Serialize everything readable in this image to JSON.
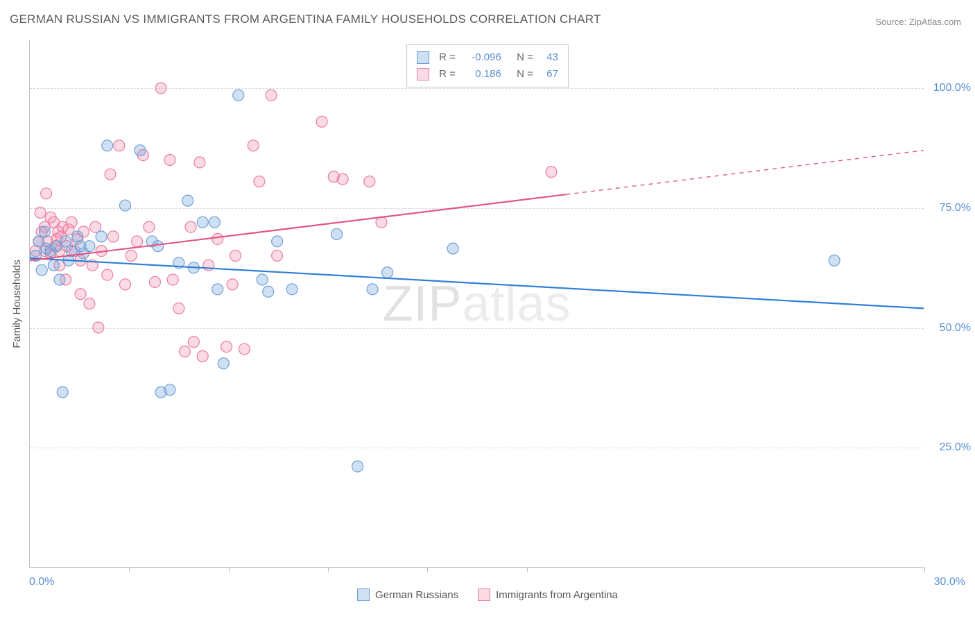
{
  "title": "GERMAN RUSSIAN VS IMMIGRANTS FROM ARGENTINA FAMILY HOUSEHOLDS CORRELATION CHART",
  "source": "Source: ZipAtlas.com",
  "watermark_bold": "ZIP",
  "watermark_rest": "atlas",
  "y_axis_title": "Family Households",
  "chart": {
    "type": "scatter",
    "xlim": [
      0,
      30
    ],
    "ylim": [
      0,
      110
    ],
    "x_ticks": [
      0,
      3.33,
      6.67,
      10,
      13.33,
      16.67,
      30
    ],
    "y_gridlines": [
      25,
      50,
      75,
      100
    ],
    "y_tick_labels": {
      "25": "25.0%",
      "50": "50.0%",
      "75": "75.0%",
      "100": "100.0%"
    },
    "x_min_label": "0.0%",
    "x_max_label": "30.0%",
    "background_color": "#ffffff",
    "grid_color": "#d8d8d8",
    "axis_color": "#c0c0c0",
    "tick_label_color": "#5a8fd6",
    "marker_radius": 8,
    "marker_stroke_width": 1.2,
    "line_width": 2.2,
    "series": [
      {
        "id": "blue",
        "name": "German Russians",
        "fill": "rgba(120,165,220,0.35)",
        "stroke": "#6f9fd8",
        "line_color": "#2f7ed8",
        "R": "-0.096",
        "N": "43",
        "trend": {
          "x1": 0,
          "y1": 64.5,
          "x2": 30,
          "y2": 54.0,
          "dash_from_x": null
        },
        "points": [
          [
            0.2,
            65
          ],
          [
            0.3,
            68
          ],
          [
            0.4,
            62
          ],
          [
            0.5,
            70
          ],
          [
            0.55,
            66.5
          ],
          [
            0.7,
            66
          ],
          [
            0.8,
            63
          ],
          [
            0.9,
            67
          ],
          [
            1.0,
            60
          ],
          [
            1.2,
            68
          ],
          [
            1.3,
            64
          ],
          [
            1.4,
            66
          ],
          [
            1.6,
            69
          ],
          [
            1.7,
            67
          ],
          [
            1.8,
            65.5
          ],
          [
            2.0,
            67
          ],
          [
            2.4,
            69
          ],
          [
            1.1,
            36.5
          ],
          [
            2.6,
            88
          ],
          [
            3.2,
            75.5
          ],
          [
            3.7,
            87
          ],
          [
            4.1,
            68
          ],
          [
            4.3,
            67
          ],
          [
            4.4,
            36.5
          ],
          [
            4.7,
            37
          ],
          [
            5.0,
            63.5
          ],
          [
            5.3,
            76.5
          ],
          [
            5.5,
            62.5
          ],
          [
            5.8,
            72
          ],
          [
            6.2,
            72
          ],
          [
            6.3,
            58
          ],
          [
            6.5,
            42.5
          ],
          [
            7.0,
            98.5
          ],
          [
            7.8,
            60
          ],
          [
            8.0,
            57.5
          ],
          [
            8.3,
            68
          ],
          [
            8.8,
            58
          ],
          [
            10.3,
            69.5
          ],
          [
            11.0,
            21
          ],
          [
            11.5,
            58
          ],
          [
            12.0,
            61.5
          ],
          [
            14.2,
            66.5
          ],
          [
            27.0,
            64
          ]
        ]
      },
      {
        "id": "pink",
        "name": "Immigrants from Argentina",
        "fill": "rgba(240,150,175,0.35)",
        "stroke": "#e97ca0",
        "line_color": "#e25587",
        "R": "0.186",
        "N": "67",
        "trend": {
          "x1": 0,
          "y1": 64.0,
          "x2": 30,
          "y2": 87.0,
          "dash_from_x": 18
        },
        "points": [
          [
            0.2,
            66
          ],
          [
            0.3,
            68
          ],
          [
            0.35,
            74
          ],
          [
            0.4,
            70
          ],
          [
            0.5,
            66
          ],
          [
            0.5,
            71
          ],
          [
            0.55,
            78
          ],
          [
            0.6,
            68
          ],
          [
            0.7,
            65.5
          ],
          [
            0.7,
            73
          ],
          [
            0.8,
            72
          ],
          [
            0.85,
            67
          ],
          [
            0.9,
            68.5
          ],
          [
            0.95,
            70
          ],
          [
            1.0,
            66
          ],
          [
            1.0,
            63
          ],
          [
            1.05,
            69
          ],
          [
            1.1,
            71
          ],
          [
            1.2,
            60
          ],
          [
            1.25,
            67
          ],
          [
            1.3,
            70.5
          ],
          [
            1.4,
            72
          ],
          [
            1.5,
            66
          ],
          [
            1.6,
            68.5
          ],
          [
            1.7,
            64
          ],
          [
            1.7,
            57
          ],
          [
            1.8,
            70
          ],
          [
            2.0,
            55
          ],
          [
            2.1,
            63
          ],
          [
            2.2,
            71
          ],
          [
            2.3,
            50
          ],
          [
            2.4,
            66
          ],
          [
            2.6,
            61
          ],
          [
            2.7,
            82
          ],
          [
            2.8,
            69
          ],
          [
            3.0,
            88
          ],
          [
            3.2,
            59
          ],
          [
            3.4,
            65
          ],
          [
            3.6,
            68
          ],
          [
            3.8,
            86
          ],
          [
            4.0,
            71
          ],
          [
            4.2,
            59.5
          ],
          [
            4.4,
            100
          ],
          [
            4.7,
            85
          ],
          [
            4.8,
            60
          ],
          [
            5.0,
            54
          ],
          [
            5.2,
            45
          ],
          [
            5.4,
            71
          ],
          [
            5.5,
            47
          ],
          [
            5.7,
            84.5
          ],
          [
            5.8,
            44
          ],
          [
            6.0,
            63
          ],
          [
            6.3,
            68.5
          ],
          [
            6.6,
            46
          ],
          [
            6.8,
            59
          ],
          [
            6.9,
            65
          ],
          [
            7.2,
            45.5
          ],
          [
            7.5,
            88
          ],
          [
            7.7,
            80.5
          ],
          [
            8.1,
            98.5
          ],
          [
            8.3,
            65
          ],
          [
            9.8,
            93
          ],
          [
            10.2,
            81.5
          ],
          [
            10.5,
            81
          ],
          [
            11.4,
            80.5
          ],
          [
            11.8,
            72
          ],
          [
            17.5,
            82.5
          ]
        ]
      }
    ]
  },
  "legend_bottom": [
    {
      "swatch_fill": "rgba(120,165,220,0.35)",
      "swatch_stroke": "#6f9fd8",
      "label": "German Russians"
    },
    {
      "swatch_fill": "rgba(240,150,175,0.35)",
      "swatch_stroke": "#e97ca0",
      "label": "Immigrants from Argentina"
    }
  ],
  "colors": {
    "title_color": "#5a5a5a",
    "source_color": "#888888",
    "stat_label_color": "#666666",
    "stat_value_color": "#5a8fd6"
  }
}
